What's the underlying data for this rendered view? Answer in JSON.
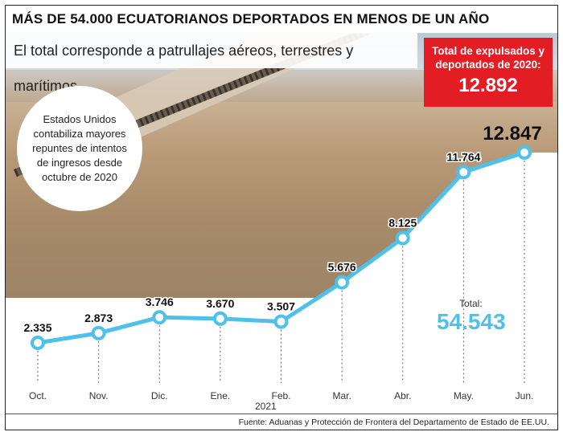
{
  "headline": "MÁS DE 54.000 ECUATORIANOS DEPORTADOS EN MENOS DE UN AÑO",
  "subtitle": "El total corresponde a patrullajes aéreos, terrestres y marítimos.",
  "callout": {
    "label": "Total de expulsados y deportados de 2020:",
    "value": "12.892"
  },
  "bubble_text": "Estados Unidos contabiliza mayores repuntes de intentos de ingresos desde octubre de 2020",
  "total": {
    "label": "Total:",
    "value": "54.543"
  },
  "year_label": "2021",
  "source": "Fuente: Aduanas y Protección de Frontera del Departamento de Estado de EE.UU.",
  "colors": {
    "line": "#4ec0ea",
    "accent": "#e31d24"
  },
  "chart_data": {
    "type": "line",
    "title": "MÁS DE 54.000 ECUATORIANOS DEPORTADOS EN MENOS DE UN AÑO",
    "categories": [
      "Oct.",
      "Nov.",
      "Dic.",
      "Ene.",
      "Feb.",
      "Mar.",
      "Abr.",
      "May.",
      "Jun."
    ],
    "values": [
      2335,
      2873,
      3746,
      3670,
      3507,
      5676,
      8125,
      11764,
      12847
    ],
    "data_labels": [
      "2.335",
      "2.873",
      "3.746",
      "3.670",
      "3.507",
      "5.676",
      "8.125",
      "11.764",
      "12.847"
    ],
    "xlabel": "",
    "ylabel": "",
    "grid": false,
    "legend": "none"
  }
}
